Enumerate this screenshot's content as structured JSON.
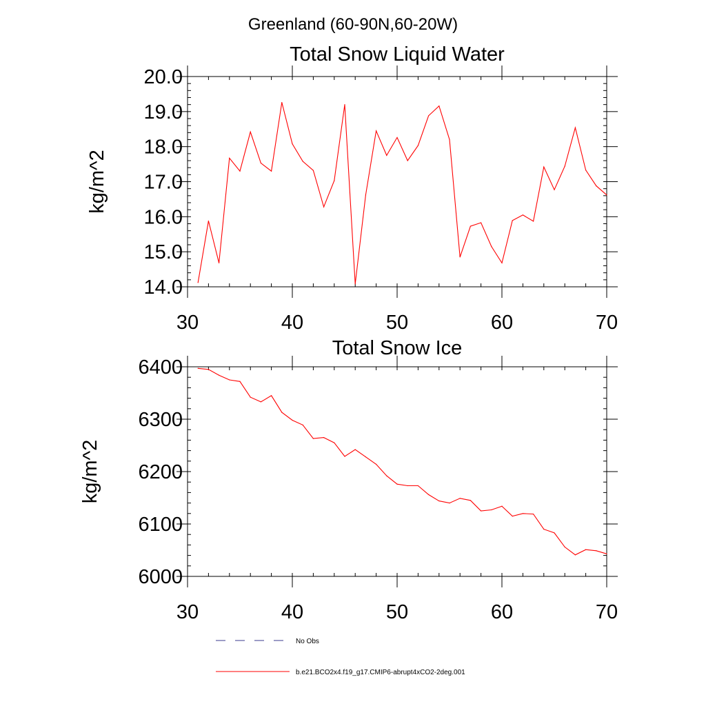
{
  "page_title": "Greenland (60-90N,60-20W)",
  "colors": {
    "model_line": "#ff0000",
    "obs_line": "#3a3a8c",
    "axis": "#000000"
  },
  "chart_data": [
    {
      "type": "line",
      "title": "Total Snow Liquid Water",
      "xlabel": "",
      "ylabel": "kg/m^2",
      "xlim": [
        30,
        70
      ],
      "ylim": [
        14.0,
        20.0
      ],
      "xticks": [
        30,
        40,
        50,
        60,
        70
      ],
      "yticks": [
        14.0,
        15.0,
        16.0,
        17.0,
        18.0,
        19.0,
        20.0
      ],
      "xtick_labels": [
        "30",
        "40",
        "50",
        "60",
        "70"
      ],
      "ytick_labels": [
        "14.0",
        "15.0",
        "16.0",
        "17.0",
        "18.0",
        "19.0",
        "20.0"
      ],
      "x_minor_step": 2,
      "y_minor_step": 0.2,
      "grid": false,
      "series": [
        {
          "name": "b.e21.BCO2x4.f19_g17.CMIP6-abrupt4xCO2-2deg.001",
          "x": [
            31,
            32,
            33,
            34,
            35,
            36,
            37,
            38,
            39,
            40,
            41,
            42,
            43,
            44,
            45,
            46,
            47,
            48,
            49,
            50,
            51,
            52,
            53,
            54,
            55,
            56,
            57,
            58,
            59,
            60,
            61,
            62,
            63,
            64,
            65,
            66,
            67,
            68,
            69,
            70
          ],
          "values": [
            14.12,
            15.88,
            14.68,
            17.67,
            17.3,
            18.42,
            17.53,
            17.3,
            19.26,
            18.08,
            17.58,
            17.32,
            16.28,
            17.03,
            19.2,
            14.08,
            16.62,
            18.45,
            17.75,
            18.26,
            17.6,
            18.03,
            18.88,
            19.16,
            18.2,
            14.85,
            15.73,
            15.83,
            15.15,
            14.68,
            15.89,
            16.05,
            15.87,
            17.42,
            16.77,
            17.44,
            18.54,
            17.33,
            16.88,
            16.62
          ]
        }
      ]
    },
    {
      "type": "line",
      "title": "Total Snow Ice",
      "xlabel": "",
      "ylabel": "kg/m^2",
      "xlim": [
        30,
        70
      ],
      "ylim": [
        6000,
        6400
      ],
      "xticks": [
        30,
        40,
        50,
        60,
        70
      ],
      "yticks": [
        6000,
        6100,
        6200,
        6300,
        6400
      ],
      "xtick_labels": [
        "30",
        "40",
        "50",
        "60",
        "70"
      ],
      "ytick_labels": [
        "6000",
        "6100",
        "6200",
        "6300",
        "6400"
      ],
      "x_minor_step": 2,
      "y_minor_step": 20,
      "grid": false,
      "series": [
        {
          "name": "b.e21.BCO2x4.f19_g17.CMIP6-abrupt4xCO2-2deg.001",
          "x": [
            31,
            32,
            33,
            34,
            35,
            36,
            37,
            38,
            39,
            40,
            41,
            42,
            43,
            44,
            45,
            46,
            47,
            48,
            49,
            50,
            51,
            52,
            53,
            54,
            55,
            56,
            57,
            58,
            59,
            60,
            61,
            62,
            63,
            64,
            65,
            66,
            67,
            68,
            69,
            70
          ],
          "values": [
            6397,
            6395,
            6384,
            6375,
            6372,
            6342,
            6333,
            6345,
            6313,
            6298,
            6289,
            6263,
            6265,
            6255,
            6229,
            6242,
            6228,
            6214,
            6192,
            6176,
            6173,
            6173,
            6156,
            6144,
            6140,
            6149,
            6145,
            6125,
            6127,
            6134,
            6115,
            6120,
            6119,
            6090,
            6083,
            6056,
            6041,
            6051,
            6049,
            6043
          ]
        }
      ]
    }
  ],
  "legend": [
    {
      "label": "No Obs",
      "style": "dashed",
      "color": "#3a3a8c"
    },
    {
      "label": "b.e21.BCO2x4.f19_g17.CMIP6-abrupt4xCO2-2deg.001",
      "style": "solid",
      "color": "#ff0000"
    }
  ]
}
